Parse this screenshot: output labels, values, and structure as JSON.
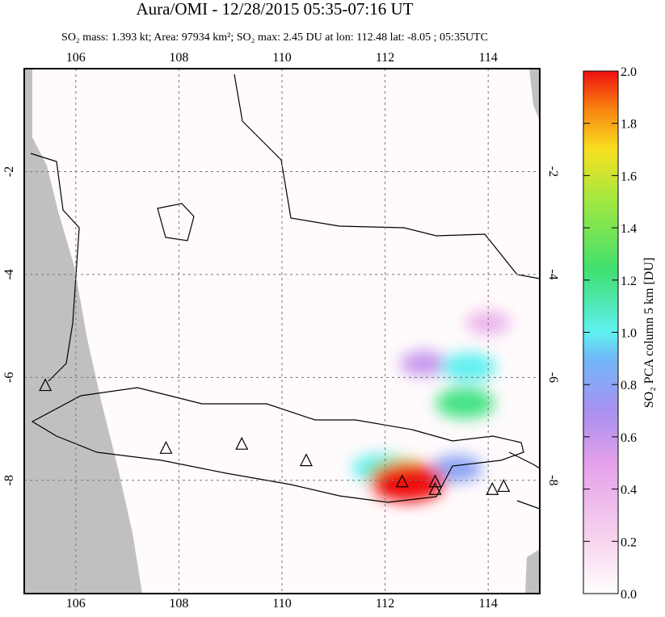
{
  "chart_data": {
    "type": "map",
    "title": "Aura/OMI - 12/28/2015 05:35-07:16 UT",
    "subtitle": "SO₂ mass: 1.393 kt; Area: 97934 km²; SO₂ max: 2.45 DU at lon: 112.48 lat: -8.05 ; 05:35UTC",
    "xlim": [
      105,
      115
    ],
    "xticks": [
      106,
      108,
      110,
      112,
      114
    ],
    "ylim": [
      -10.2,
      0
    ],
    "yticks": [
      -2,
      -4,
      -6,
      -8
    ],
    "grid": true,
    "plume": {
      "lon": [
        114.0,
        112.75,
        113.62,
        113.55,
        113.39,
        111.9,
        112.28,
        112.44
      ],
      "lat": [
        -4.94,
        -5.73,
        -5.8,
        -6.5,
        -7.77,
        -7.77,
        -7.9,
        -8.04
      ],
      "values": [
        0.4,
        0.6,
        1.0,
        1.2,
        0.8,
        1.0,
        1.4,
        2.0
      ]
    },
    "volcanoes": {
      "lon": [
        105.41,
        107.75,
        109.22,
        110.47,
        112.33,
        112.97,
        112.97,
        114.08,
        114.3
      ],
      "lat": [
        -6.16,
        -7.38,
        -7.3,
        -7.62,
        -8.03,
        -8.03,
        -8.18,
        -8.18,
        -8.12
      ]
    },
    "colorbar": {
      "label": "SO₂ PCA column 5 km [DU]",
      "lim": [
        0,
        2
      ],
      "ticks": [
        {
          "value": 0,
          "label": "0.0"
        },
        {
          "value": 0.2,
          "label": "0.2"
        },
        {
          "value": 0.4,
          "label": "0.4"
        },
        {
          "value": 0.6,
          "label": "0.6"
        },
        {
          "value": 0.8,
          "label": "0.8"
        },
        {
          "value": 1,
          "label": "1.0"
        },
        {
          "value": 1.2,
          "label": "1.2"
        },
        {
          "value": 1.4,
          "label": "1.4"
        },
        {
          "value": 1.6,
          "label": "1.6"
        },
        {
          "value": 1.8,
          "label": "1.8"
        },
        {
          "value": 2,
          "label": "2.0"
        }
      ]
    }
  }
}
